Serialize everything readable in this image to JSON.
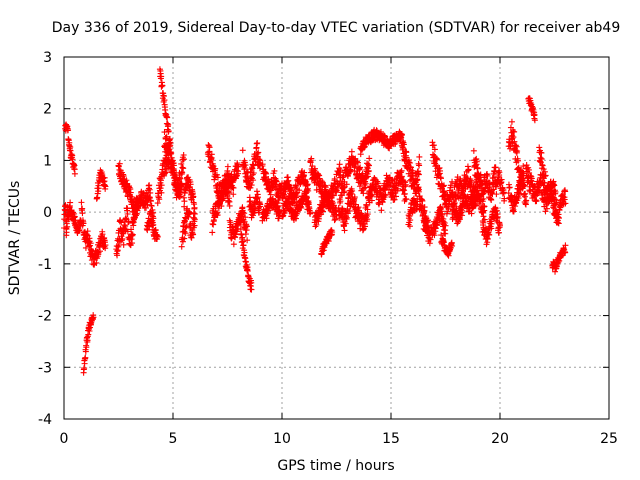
{
  "chart_data": {
    "type": "scatter",
    "title": "Day 336 of 2019, Sidereal Day-to-day VTEC variation (SDTVAR) for receiver ab49",
    "xlabel": "GPS time / hours",
    "ylabel": "SDTVAR / TECUs",
    "xlim": [
      0,
      25
    ],
    "ylim": [
      -4,
      3
    ],
    "x_ticks": [
      0,
      5,
      10,
      15,
      20,
      25
    ],
    "y_ticks": [
      -4,
      -3,
      -2,
      -1,
      0,
      1,
      2,
      3
    ],
    "grid": true,
    "marker": "+",
    "series": [
      {
        "name": "SDTVAR",
        "color": "#ff0000",
        "segments": [
          {
            "x0": 0.0,
            "x1": 0.15,
            "y": [
              -0.3,
              0.2,
              0.0,
              -0.4,
              0.1
            ],
            "noise": 0.15
          },
          {
            "x0": 0.05,
            "x1": 0.5,
            "y": [
              1.65,
              1.6,
              1.2,
              1.0,
              0.8
            ],
            "noise": 0.08
          },
          {
            "x0": 0.1,
            "x1": 0.8,
            "y": [
              -0.3,
              0.1,
              -0.1,
              -0.35,
              -0.2
            ],
            "noise": 0.1
          },
          {
            "x0": 0.8,
            "x1": 1.2,
            "y": [
              0.1,
              -0.4,
              -0.6,
              -0.5,
              -0.7
            ],
            "noise": 0.15
          },
          {
            "x0": 0.9,
            "x1": 1.35,
            "y": [
              -3.05,
              -2.6,
              -2.3,
              -2.1,
              -2.0
            ],
            "noise": 0.08
          },
          {
            "x0": 1.2,
            "x1": 1.9,
            "y": [
              -0.7,
              -0.9,
              -0.8,
              -0.5,
              -0.6
            ],
            "noise": 0.15
          },
          {
            "x0": 1.5,
            "x1": 1.9,
            "y": [
              0.3,
              0.6,
              0.8,
              0.65,
              0.5
            ],
            "noise": 0.12
          },
          {
            "x0": 2.4,
            "x1": 3.2,
            "y": [
              -0.8,
              -0.3,
              -0.5,
              0.0,
              -0.6,
              -0.2
            ],
            "noise": 0.2
          },
          {
            "x0": 2.5,
            "x1": 3.4,
            "y": [
              0.9,
              0.6,
              0.5,
              0.3,
              0.0,
              0.2
            ],
            "noise": 0.15
          },
          {
            "x0": 3.2,
            "x1": 4.1,
            "y": [
              -0.1,
              0.1,
              0.3,
              0.2,
              0.4,
              -0.2
            ],
            "noise": 0.15
          },
          {
            "x0": 3.8,
            "x1": 4.3,
            "y": [
              -0.3,
              -0.1,
              -0.4,
              -0.5
            ],
            "noise": 0.12
          },
          {
            "x0": 4.4,
            "x1": 4.8,
            "y": [
              2.7,
              2.4,
              2.1,
              1.8,
              1.6
            ],
            "noise": 0.1
          },
          {
            "x0": 4.3,
            "x1": 5.4,
            "y": [
              0.3,
              0.6,
              0.9,
              1.2,
              0.7,
              0.4,
              0.8
            ],
            "noise": 0.25
          },
          {
            "x0": 4.6,
            "x1": 5.5,
            "y": [
              1.4,
              1.2,
              0.9,
              0.5,
              0.3,
              1.1
            ],
            "noise": 0.2
          },
          {
            "x0": 5.4,
            "x1": 6.0,
            "y": [
              -0.6,
              -0.3,
              0.0,
              -0.4,
              -0.2
            ],
            "noise": 0.2
          },
          {
            "x0": 5.5,
            "x1": 6.0,
            "y": [
              0.2,
              0.6,
              0.4,
              0.0
            ],
            "noise": 0.15
          },
          {
            "x0": 6.6,
            "x1": 7.6,
            "y": [
              1.2,
              0.9,
              0.6,
              0.3,
              0.5,
              0.2
            ],
            "noise": 0.2
          },
          {
            "x0": 6.8,
            "x1": 8.0,
            "y": [
              -0.2,
              0.1,
              0.4,
              0.7,
              0.5,
              0.9
            ],
            "noise": 0.2
          },
          {
            "x0": 7.6,
            "x1": 8.4,
            "y": [
              -0.3,
              -0.5,
              -0.2,
              0.0,
              -0.4
            ],
            "noise": 0.15
          },
          {
            "x0": 8.1,
            "x1": 8.6,
            "y": [
              -0.3,
              -0.7,
              -1.0,
              -1.3,
              -1.45
            ],
            "noise": 0.1
          },
          {
            "x0": 8.2,
            "x1": 9.0,
            "y": [
              1.0,
              0.7,
              0.5,
              0.8,
              1.2,
              0.9
            ],
            "noise": 0.2
          },
          {
            "x0": 8.5,
            "x1": 9.0,
            "y": [
              0.2,
              -0.1,
              0.3,
              0.0
            ],
            "noise": 0.15
          },
          {
            "x0": 9.1,
            "x1": 10.0,
            "y": [
              0.8,
              0.6,
              0.4,
              0.7,
              0.3,
              0.5
            ],
            "noise": 0.15
          },
          {
            "x0": 9.1,
            "x1": 9.9,
            "y": [
              -0.1,
              0.0,
              0.2,
              0.1,
              -0.1
            ],
            "noise": 0.12
          },
          {
            "x0": 10.0,
            "x1": 11.2,
            "y": [
              0.3,
              0.6,
              0.2,
              0.5,
              0.7,
              0.4
            ],
            "noise": 0.15
          },
          {
            "x0": 10.0,
            "x1": 11.3,
            "y": [
              0.0,
              0.2,
              -0.1,
              0.1,
              0.3,
              0.0
            ],
            "noise": 0.12
          },
          {
            "x0": 11.3,
            "x1": 12.7,
            "y": [
              0.9,
              0.6,
              0.4,
              0.2,
              0.5,
              0.8
            ],
            "noise": 0.2
          },
          {
            "x0": 11.5,
            "x1": 12.5,
            "y": [
              -0.2,
              0.0,
              0.3,
              0.1,
              -0.1
            ],
            "noise": 0.15
          },
          {
            "x0": 11.8,
            "x1": 12.3,
            "y": [
              -0.8,
              -0.6,
              -0.5,
              -0.4
            ],
            "noise": 0.08
          },
          {
            "x0": 12.7,
            "x1": 14.0,
            "y": [
              0.4,
              0.7,
              1.0,
              0.8,
              0.5,
              0.9
            ],
            "noise": 0.2
          },
          {
            "x0": 12.6,
            "x1": 14.0,
            "y": [
              0.1,
              -0.2,
              0.3,
              0.0,
              -0.3,
              0.2
            ],
            "noise": 0.2
          },
          {
            "x0": 13.6,
            "x1": 15.5,
            "y": [
              1.2,
              1.4,
              1.5,
              1.45,
              1.3,
              1.4,
              1.5
            ],
            "noise": 0.1
          },
          {
            "x0": 14.0,
            "x1": 15.7,
            "y": [
              0.3,
              0.5,
              0.2,
              0.6,
              0.4,
              0.7,
              0.3
            ],
            "noise": 0.2
          },
          {
            "x0": 15.5,
            "x1": 16.3,
            "y": [
              1.3,
              1.0,
              0.7,
              0.5,
              0.9
            ],
            "noise": 0.2
          },
          {
            "x0": 15.8,
            "x1": 16.7,
            "y": [
              -0.2,
              0.1,
              0.3,
              0.0,
              -0.3
            ],
            "noise": 0.2
          },
          {
            "x0": 16.9,
            "x1": 17.8,
            "y": [
              1.3,
              0.9,
              0.6,
              0.3,
              0.1,
              0.5
            ],
            "noise": 0.2
          },
          {
            "x0": 16.5,
            "x1": 17.5,
            "y": [
              -0.2,
              -0.5,
              -0.3,
              0.0,
              -0.4
            ],
            "noise": 0.15
          },
          {
            "x0": 17.3,
            "x1": 17.8,
            "y": [
              -0.5,
              -0.7,
              -0.8,
              -0.6
            ],
            "noise": 0.08
          },
          {
            "x0": 17.8,
            "x1": 19.0,
            "y": [
              0.2,
              0.5,
              0.4,
              0.7,
              0.3,
              0.6
            ],
            "noise": 0.2
          },
          {
            "x0": 17.8,
            "x1": 19.3,
            "y": [
              0.0,
              -0.1,
              0.2,
              0.1,
              0.3,
              0.0
            ],
            "noise": 0.15
          },
          {
            "x0": 18.8,
            "x1": 19.8,
            "y": [
              1.0,
              0.7,
              0.4,
              0.6,
              0.3,
              0.8
            ],
            "noise": 0.2
          },
          {
            "x0": 19.2,
            "x1": 20.0,
            "y": [
              -0.3,
              -0.5,
              -0.2,
              0.0,
              -0.4
            ],
            "noise": 0.15
          },
          {
            "x0": 19.8,
            "x1": 20.2,
            "y": [
              0.4,
              0.7,
              0.5,
              0.3
            ],
            "noise": 0.15
          },
          {
            "x0": 20.4,
            "x1": 21.1,
            "y": [
              1.2,
              1.6,
              1.3,
              0.9,
              0.6,
              0.8
            ],
            "noise": 0.2
          },
          {
            "x0": 20.4,
            "x1": 21.2,
            "y": [
              0.4,
              0.1,
              0.3,
              0.6,
              0.2
            ],
            "noise": 0.15
          },
          {
            "x0": 21.3,
            "x1": 21.6,
            "y": [
              2.2,
              2.1,
              1.95,
              1.8
            ],
            "noise": 0.08
          },
          {
            "x0": 21.2,
            "x1": 22.3,
            "y": [
              0.8,
              0.5,
              0.3,
              0.6,
              0.2,
              0.4
            ],
            "noise": 0.2
          },
          {
            "x0": 21.8,
            "x1": 22.6,
            "y": [
              1.2,
              0.7,
              0.3,
              0.5,
              0.1
            ],
            "noise": 0.2
          },
          {
            "x0": 22.3,
            "x1": 23.0,
            "y": [
              0.4,
              0.1,
              -0.2,
              0.2,
              0.3
            ],
            "noise": 0.15
          },
          {
            "x0": 22.4,
            "x1": 23.0,
            "y": [
              -1.0,
              -1.1,
              -0.9,
              -0.8,
              -0.7
            ],
            "noise": 0.08
          }
        ]
      }
    ]
  }
}
